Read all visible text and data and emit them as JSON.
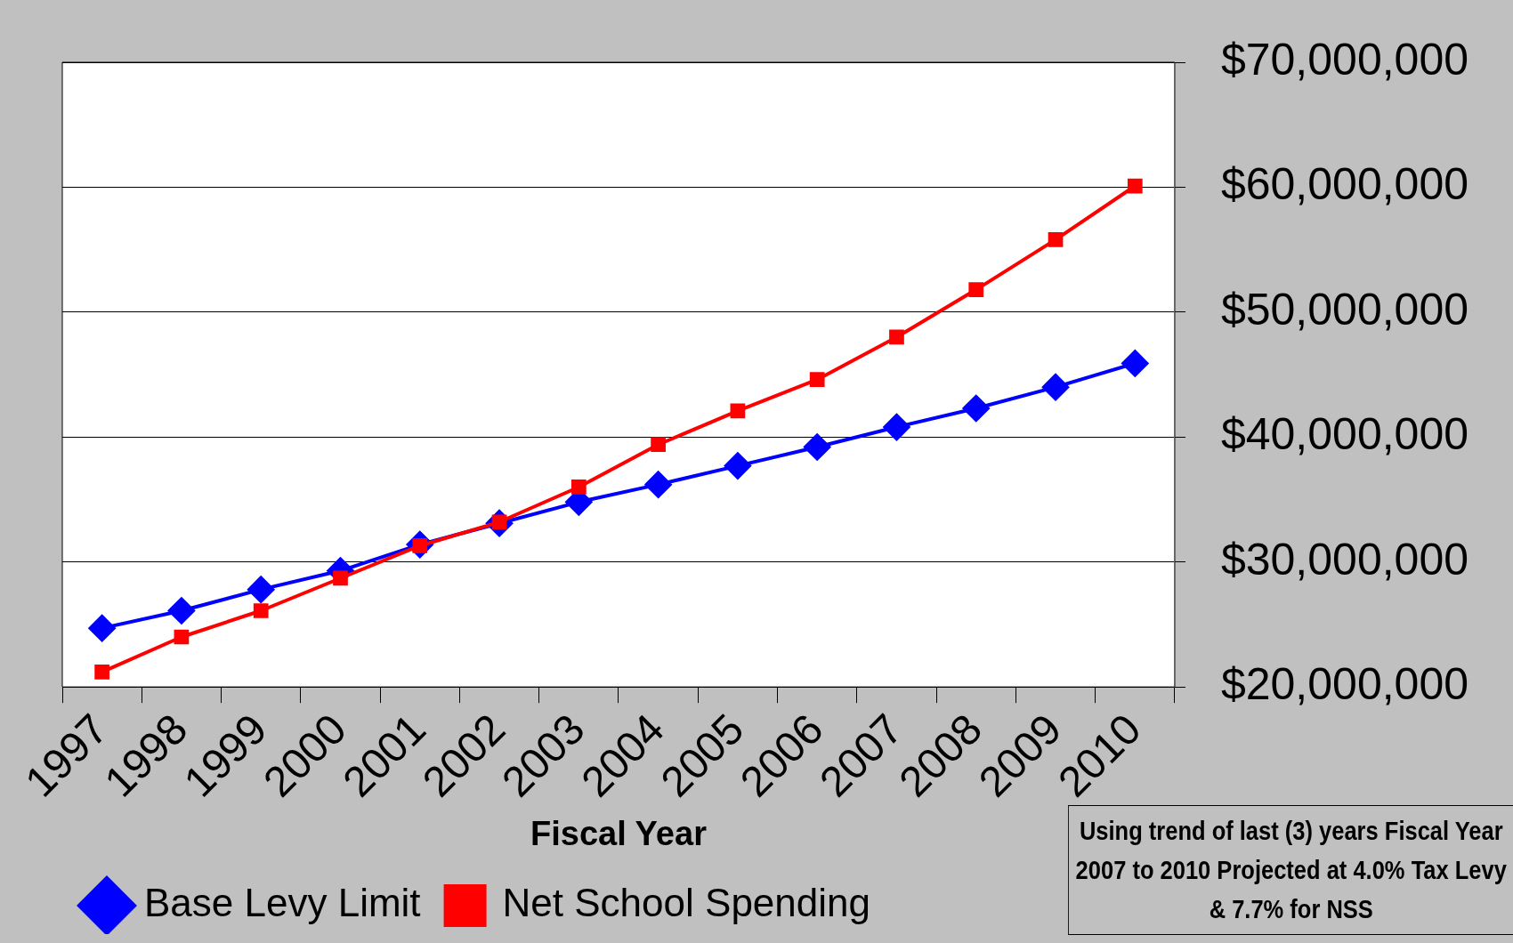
{
  "chart_data": {
    "type": "line",
    "xlabel": "Fiscal Year",
    "categories": [
      "1997",
      "1998",
      "1999",
      "2000",
      "2001",
      "2002",
      "2003",
      "2004",
      "2005",
      "2006",
      "2007",
      "2008",
      "2009",
      "2010"
    ],
    "series": [
      {
        "name": "Base Levy Limit",
        "color": "#0000ff",
        "marker": "diamond",
        "values": [
          24700000,
          26100000,
          27800000,
          29300000,
          31400000,
          33100000,
          34800000,
          36200000,
          37700000,
          39200000,
          40800000,
          42300000,
          44000000,
          45900000
        ]
      },
      {
        "name": "Net School Spending",
        "color": "#ff0000",
        "marker": "square",
        "values": [
          21200000,
          24000000,
          26100000,
          28700000,
          31300000,
          33200000,
          36000000,
          39400000,
          42100000,
          44600000,
          48000000,
          51800000,
          55800000,
          60100000
        ]
      }
    ],
    "ylim": [
      20000000,
      70000000
    ],
    "yticks": [
      {
        "value": 20000000,
        "label": "$20,000,000"
      },
      {
        "value": 30000000,
        "label": "$30,000,000"
      },
      {
        "value": 40000000,
        "label": "$40,000,000"
      },
      {
        "value": 50000000,
        "label": "$50,000,000"
      },
      {
        "value": 60000000,
        "label": "$60,000,000"
      },
      {
        "value": 70000000,
        "label": "$70,000,000"
      }
    ],
    "grid": "y",
    "legend": "bottom",
    "line_style": "solid",
    "annotations": [
      "Using trend of last (3) years Fiscal Year 2007 to 2010 Projected at 4.0% Tax Levy & 7.7% for NSS"
    ]
  }
}
